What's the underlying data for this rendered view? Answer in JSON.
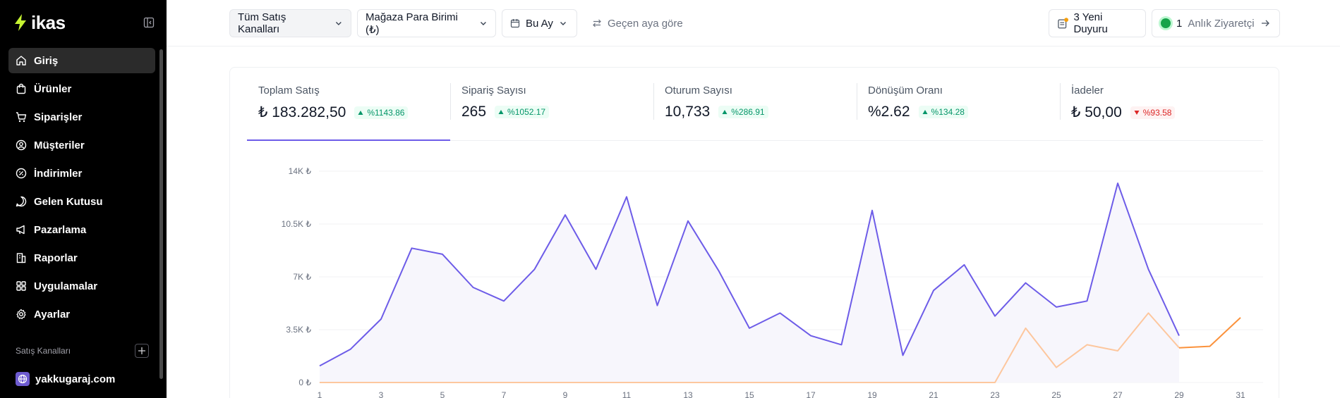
{
  "brand": {
    "name": "ikas",
    "accent": "#c6f432"
  },
  "sidebar": {
    "items": [
      {
        "label": "Giriş",
        "icon": "home-icon",
        "active": true
      },
      {
        "label": "Ürünler",
        "icon": "bag-icon",
        "active": false
      },
      {
        "label": "Siparişler",
        "icon": "cart-icon",
        "active": false
      },
      {
        "label": "Müşteriler",
        "icon": "user-circle-icon",
        "active": false
      },
      {
        "label": "İndirimler",
        "icon": "discount-icon",
        "active": false
      },
      {
        "label": "Gelen Kutusu",
        "icon": "chat-icon",
        "active": false
      },
      {
        "label": "Pazarlama",
        "icon": "megaphone-icon",
        "active": false
      },
      {
        "label": "Raporlar",
        "icon": "building-icon",
        "active": false
      },
      {
        "label": "Uygulamalar",
        "icon": "apps-grid-icon",
        "active": false
      },
      {
        "label": "Ayarlar",
        "icon": "gear-icon",
        "active": false
      }
    ],
    "section_label": "Satış Kanalları",
    "channel": {
      "label": "yakkugaraj.com",
      "icon": "globe-icon"
    }
  },
  "topbar": {
    "channel_filter": "Tüm Satış Kanalları",
    "currency_filter": "Mağaza Para Birimi (₺)",
    "date_filter": "Bu Ay",
    "compare_label": "Geçen aya göre",
    "announcements": "3 Yeni Duyuru",
    "visitors_count": "1",
    "visitors_label": "Anlık Ziyaretçi"
  },
  "metrics": [
    {
      "title": "Toplam Satış",
      "value": "₺ 183.282,50",
      "change": "%1143.86",
      "direction": "up",
      "active": true
    },
    {
      "title": "Sipariş Sayısı",
      "value": "265",
      "change": "%1052.17",
      "direction": "up",
      "active": false
    },
    {
      "title": "Oturum Sayısı",
      "value": "10,733",
      "change": "%286.91",
      "direction": "up",
      "active": false
    },
    {
      "title": "Dönüşüm Oranı",
      "value": "%2.62",
      "change": "%134.28",
      "direction": "up",
      "active": false
    },
    {
      "title": "İadeler",
      "value": "₺ 50,00",
      "change": "%93.58",
      "direction": "down",
      "active": false
    }
  ],
  "chart_data": {
    "type": "area",
    "x": [
      1,
      2,
      3,
      4,
      5,
      6,
      7,
      8,
      9,
      10,
      11,
      12,
      13,
      14,
      15,
      16,
      17,
      18,
      19,
      20,
      21,
      22,
      23,
      24,
      25,
      26,
      27,
      28,
      29,
      30,
      31
    ],
    "x_tick_labels": [
      "1",
      "3",
      "5",
      "7",
      "9",
      "11",
      "13",
      "15",
      "17",
      "19",
      "21",
      "23",
      "25",
      "27",
      "29",
      "31"
    ],
    "y_tick_labels": [
      "0 ₺",
      "3.5K ₺",
      "7K ₺",
      "10.5K ₺",
      "14K ₺"
    ],
    "ylim": [
      0,
      14000
    ],
    "series": [
      {
        "color": "#6d5ce8",
        "fill": "#f7f6fc",
        "values": [
          1100,
          2200,
          4200,
          8900,
          8500,
          6300,
          5400,
          7500,
          11100,
          7500,
          12300,
          5100,
          10700,
          7400,
          3600,
          4600,
          3100,
          2500,
          11400,
          1800,
          6100,
          7800,
          4400,
          6600,
          5000,
          5400,
          13200,
          7500,
          3100,
          null,
          null
        ]
      },
      {
        "color": "#fdc79e",
        "values": [
          0,
          0,
          0,
          0,
          0,
          0,
          0,
          0,
          0,
          0,
          0,
          0,
          0,
          0,
          0,
          0,
          0,
          0,
          0,
          0,
          0,
          0,
          0,
          3600,
          1000,
          2500,
          2100,
          4600,
          2300,
          null,
          null
        ]
      },
      {
        "color": "#fb923c",
        "values": [
          null,
          null,
          null,
          null,
          null,
          null,
          null,
          null,
          null,
          null,
          null,
          null,
          null,
          null,
          null,
          null,
          null,
          null,
          null,
          null,
          null,
          null,
          null,
          null,
          null,
          null,
          null,
          null,
          2300,
          2400,
          4300
        ]
      }
    ],
    "grid": true
  }
}
